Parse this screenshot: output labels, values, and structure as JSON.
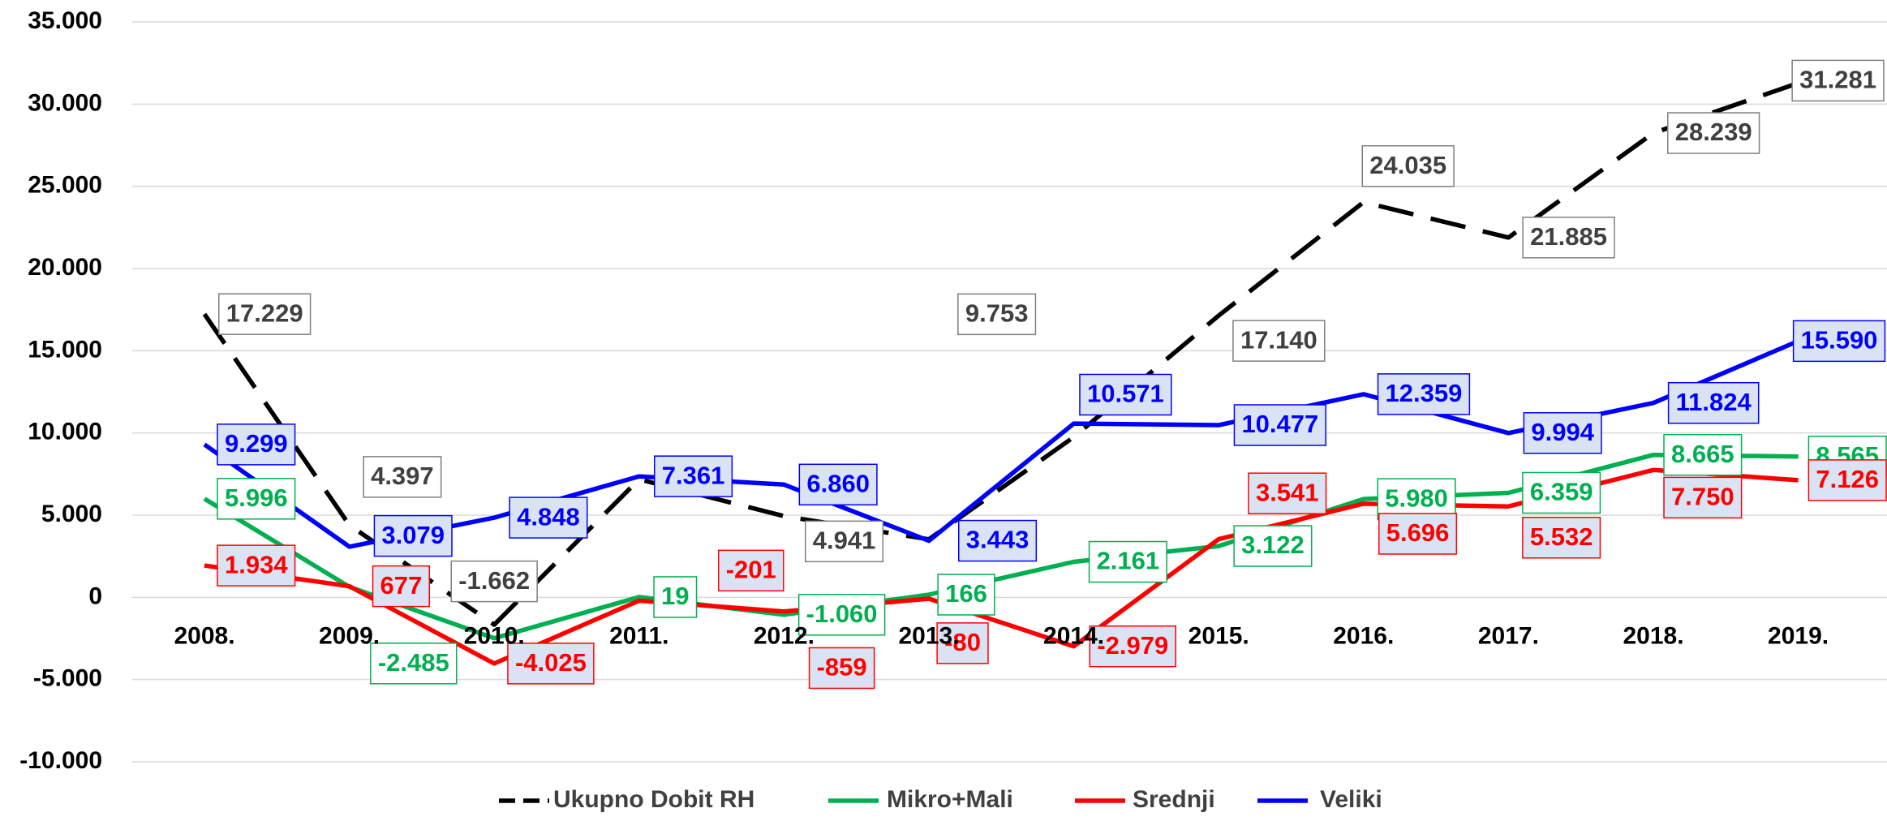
{
  "chart_data": {
    "type": "line",
    "categories": [
      "2008.",
      "2009.",
      "2010.",
      "2011.",
      "2012.",
      "2013.",
      "2014.",
      "2015.",
      "2016.",
      "2017.",
      "2018.",
      "2019."
    ],
    "ylim": [
      -10000,
      35000
    ],
    "yticks": [
      {
        "value": 35000,
        "label": "35.000"
      },
      {
        "value": 30000,
        "label": "30.000"
      },
      {
        "value": 25000,
        "label": "25.000"
      },
      {
        "value": 20000,
        "label": "20.000"
      },
      {
        "value": 15000,
        "label": "15.000"
      },
      {
        "value": 10000,
        "label": "10.000"
      },
      {
        "value": 5000,
        "label": "5.000"
      },
      0,
      {
        "value": -5000,
        "label": "-5.000"
      },
      {
        "value": -10000,
        "label": "-10.000"
      }
    ],
    "grid": true,
    "legend": "bottom",
    "series": [
      {
        "name": "Ukupno Dobit RH",
        "color": "#000000",
        "dashed": true,
        "values": [
          17229,
          4397,
          -1662,
          7179,
          4941,
          3529,
          9753,
          17140,
          24035,
          21885,
          28239,
          31281
        ],
        "value_labels": [
          "17.229",
          "4.397",
          "-1.662",
          null,
          "4.941",
          null,
          "9.753",
          "17.140",
          "24.035",
          "21.885",
          "28.239",
          "31.281"
        ]
      },
      {
        "name": "Mikro+Mali",
        "color": "#00b050",
        "values": [
          5996,
          641,
          -2485,
          19,
          -1060,
          166,
          2161,
          3122,
          5980,
          6359,
          8665,
          8565
        ],
        "value_labels": [
          "5.996",
          null,
          "-2.485",
          "19",
          "-1.060",
          "166",
          "2.161",
          "3.122",
          "5.980",
          "6.359",
          "8.665",
          "8.565"
        ]
      },
      {
        "name": "Srednji",
        "color": "#ff0000",
        "values": [
          1934,
          677,
          -4025,
          -201,
          -859,
          -80,
          -2979,
          3541,
          5696,
          5532,
          7750,
          7126
        ],
        "value_labels": [
          "1.934",
          "677",
          "-4.025",
          "-201",
          "-859",
          "-80",
          "-2.979",
          "3.541",
          "5.696",
          "5.532",
          "7.750",
          "7.126"
        ]
      },
      {
        "name": "Veliki",
        "color": "#0000ff",
        "values": [
          9299,
          3079,
          4848,
          7361,
          6860,
          3443,
          10571,
          10477,
          12359,
          9994,
          11824,
          15590
        ],
        "value_labels": [
          "9.299",
          "3.079",
          "4.848",
          "7.361",
          "6.860",
          "3.443",
          "10.571",
          "10.477",
          "12.359",
          "9.994",
          "11.824",
          "15.590"
        ]
      }
    ]
  }
}
